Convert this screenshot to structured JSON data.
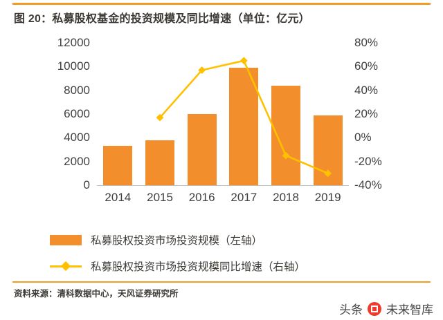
{
  "watermark": {
    "prefix": "头条",
    "brand": "未来智库",
    "logo": "toutiao-logo"
  },
  "source": "资料来源：清科数据中心，天风证券研究所",
  "colors": {
    "bar": "#F28E2C",
    "line": "#FFC000",
    "rule": "#F59B22",
    "axis_text": "#3F3F3F",
    "watermark_logo": "#EE3B2C"
  },
  "chart_data": {
    "type": "bar+line combo",
    "title": "图 20：私募股权基金的投资规模及同比增速（单位：亿元）",
    "categories": [
      "2014",
      "2015",
      "2016",
      "2017",
      "2018",
      "2019"
    ],
    "series": [
      {
        "name": "私募股权投资市场投资规模（左轴）",
        "type": "bar",
        "axis": "left",
        "unit": "亿元",
        "values": [
          3300,
          3800,
          6000,
          9900,
          8400,
          5900
        ]
      },
      {
        "name": "私募股权投资市场投资规模同比增速（右轴）",
        "type": "line",
        "axis": "right",
        "unit": "%",
        "values": [
          null,
          17,
          57,
          65,
          -15,
          -30
        ]
      }
    ],
    "left_axis": {
      "min": 0,
      "max": 12000,
      "ticks": [
        0,
        2000,
        4000,
        6000,
        8000,
        10000,
        12000
      ]
    },
    "right_axis": {
      "min": -40,
      "max": 80,
      "ticks_percent": [
        "80%",
        "60%",
        "40%",
        "20%",
        "0%",
        "-20%",
        "-40%"
      ]
    },
    "grid": false,
    "legend_position": "bottom-left"
  }
}
